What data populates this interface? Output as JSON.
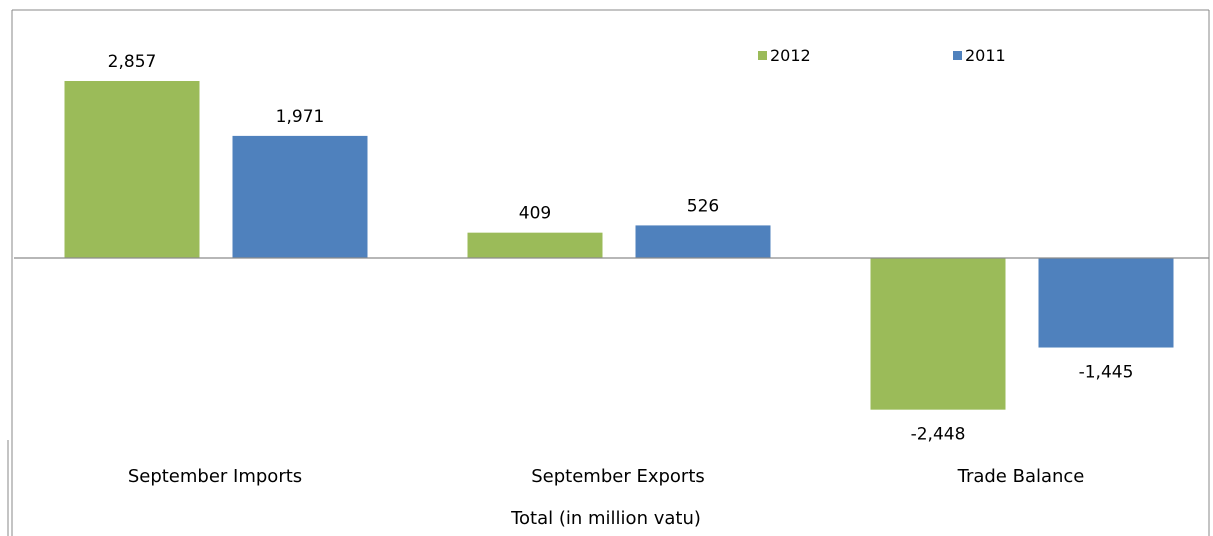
{
  "chart_data": {
    "type": "bar",
    "categories": [
      "September Imports",
      "September Exports",
      "Trade Balance"
    ],
    "series": [
      {
        "name": "2012",
        "values": [
          2857,
          409,
          -2448
        ],
        "labels": [
          "2,857",
          "409",
          "-2,448"
        ],
        "color": "#9bbb59"
      },
      {
        "name": "2011",
        "values": [
          1971,
          526,
          -1445
        ],
        "labels": [
          "1,971",
          "526",
          "-1,445"
        ],
        "color": "#4f81bd"
      }
    ],
    "xlabel": "Total  (in million vatu)",
    "ylabel": "",
    "ylim": [
      -2448,
      2857
    ],
    "grid": false,
    "legend": "top-right"
  }
}
